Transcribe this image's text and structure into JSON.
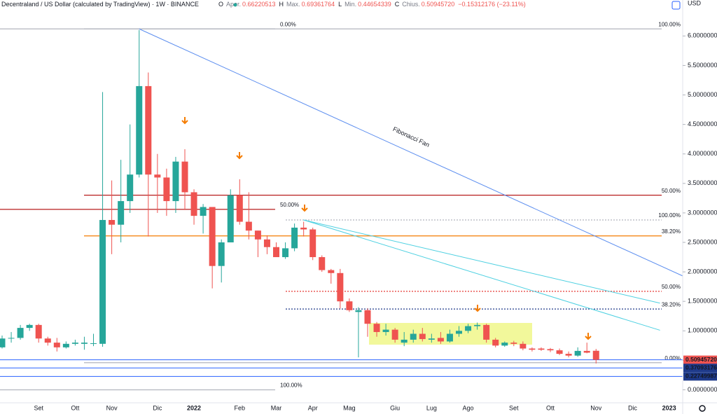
{
  "header": {
    "symbol": "Decentraland / US Dollar (calculated by TradingView) · 1W · BINANCE",
    "ohlc": [
      {
        "key": "O",
        "label": "Aper.",
        "value": "0.66220513"
      },
      {
        "key": "H",
        "label": "Max.",
        "value": "0.69361764"
      },
      {
        "key": "L",
        "label": "Min.",
        "value": "0.44654339"
      },
      {
        "key": "C",
        "label": "Chius.",
        "value": "0.50945720"
      }
    ],
    "change": "−0.15312176 (−23.11%)",
    "currency": "USD"
  },
  "chart_data": {
    "type": "candlestick",
    "up_color": "#26a69a",
    "down_color": "#ef5350",
    "categories": [
      null,
      null,
      null,
      null,
      "Set",
      null,
      null,
      null,
      "Ott",
      null,
      null,
      null,
      "Nov",
      null,
      null,
      null,
      null,
      "Dic",
      null,
      null,
      null,
      "2022",
      null,
      null,
      null,
      null,
      "Feb",
      null,
      null,
      null,
      "Mar",
      null,
      null,
      null,
      "Apr",
      null,
      null,
      null,
      "Mag",
      null,
      null,
      null,
      null,
      "Giu",
      null,
      null,
      null,
      "Lug",
      null,
      null,
      null,
      "Ago",
      null,
      null,
      null,
      null,
      "Set",
      null,
      null,
      null,
      "Ott",
      null,
      null,
      null,
      null,
      "Nov",
      null,
      null,
      null,
      "Dic",
      null,
      null,
      null,
      "2023"
    ],
    "open": [
      0.72,
      0.87,
      0.88,
      1.05,
      1.1,
      0.87,
      0.8,
      0.72,
      0.78,
      0.78,
      0.78,
      0.78,
      2.88,
      2.8,
      3.2,
      3.65,
      5.15,
      3.65,
      3.6,
      3.2,
      3.87,
      3.35,
      2.95,
      3.1,
      2.1,
      2.5,
      3.3,
      2.85,
      2.7,
      2.55,
      2.42,
      2.25,
      2.4,
      2.75,
      2.72,
      2.25,
      2.03,
      1.98,
      1.5,
      1.32,
      1.35,
      1.12,
      0.98,
      1.02,
      0.8,
      0.85,
      0.95,
      0.85,
      0.88,
      0.82,
      0.95,
      1.0,
      1.08,
      1.1,
      0.85,
      0.75,
      0.8,
      0.78,
      0.7,
      0.7,
      0.69,
      0.67,
      0.61,
      0.58,
      0.66,
      0.66220513,
      null,
      null,
      null,
      null,
      null,
      null,
      null,
      null
    ],
    "high": [
      0.92,
      0.98,
      1.1,
      1.12,
      1.12,
      0.9,
      0.88,
      0.82,
      0.85,
      0.9,
      0.95,
      5.05,
      3.55,
      3.9,
      4.5,
      6.1,
      5.38,
      4.0,
      3.75,
      3.95,
      4.08,
      3.4,
      3.15,
      3.1,
      2.55,
      3.4,
      3.57,
      3.35,
      2.7,
      2.62,
      2.5,
      2.5,
      2.82,
      2.85,
      2.75,
      2.28,
      2.05,
      2.05,
      1.55,
      1.4,
      1.38,
      1.15,
      1.12,
      1.05,
      0.98,
      1.02,
      1.05,
      0.95,
      0.98,
      1.02,
      1.08,
      1.12,
      1.14,
      1.12,
      0.88,
      0.82,
      0.83,
      0.82,
      0.72,
      0.72,
      0.71,
      0.7,
      0.65,
      0.72,
      0.8,
      0.69361764,
      null,
      null,
      null,
      null,
      null,
      null,
      null,
      null
    ],
    "low": [
      0.7,
      0.8,
      0.85,
      1.0,
      0.8,
      0.75,
      0.65,
      0.7,
      0.75,
      0.68,
      0.74,
      0.73,
      2.3,
      2.5,
      3.0,
      3.6,
      2.6,
      3.0,
      2.95,
      3.0,
      3.05,
      2.8,
      2.65,
      1.72,
      1.82,
      2.5,
      2.8,
      2.55,
      2.25,
      2.3,
      2.25,
      2.22,
      2.35,
      2.6,
      2.2,
      2.0,
      1.8,
      1.38,
      1.32,
      0.55,
      0.9,
      0.9,
      0.92,
      0.8,
      0.74,
      0.8,
      0.82,
      0.8,
      0.78,
      0.8,
      0.9,
      0.96,
      1.02,
      0.8,
      0.72,
      0.73,
      0.74,
      0.67,
      0.65,
      0.66,
      0.64,
      0.59,
      0.55,
      0.56,
      0.62,
      0.44654339,
      null,
      null,
      null,
      null,
      null,
      null,
      null,
      null
    ],
    "close": [
      0.87,
      0.88,
      1.05,
      1.1,
      0.87,
      0.8,
      0.72,
      0.78,
      0.8,
      0.8,
      0.79,
      2.88,
      2.8,
      3.2,
      3.65,
      5.15,
      3.65,
      3.6,
      3.2,
      3.87,
      3.35,
      2.95,
      3.1,
      2.1,
      2.5,
      3.3,
      2.85,
      2.7,
      2.55,
      2.42,
      2.25,
      2.4,
      2.75,
      2.72,
      2.25,
      2.03,
      1.98,
      1.5,
      1.35,
      1.35,
      1.12,
      0.98,
      1.02,
      0.85,
      0.85,
      0.95,
      0.86,
      0.87,
      0.82,
      0.95,
      1.0,
      1.08,
      1.1,
      0.85,
      0.75,
      0.8,
      0.78,
      0.7,
      0.68,
      0.68,
      0.67,
      0.61,
      0.58,
      0.66,
      0.63,
      0.5094572,
      null,
      null,
      null,
      null,
      null,
      null,
      null,
      null
    ],
    "ylim": [
      -0.22,
      6.61
    ],
    "yticks": [
      {
        "value": 0,
        "label": "0.00000000"
      },
      {
        "value": 0.5,
        "label": "0.50000000"
      },
      {
        "value": 1,
        "label": "1.00000000"
      },
      {
        "value": 1.5,
        "label": "1.50000000"
      },
      {
        "value": 2,
        "label": "2.00000000"
      },
      {
        "value": 2.5,
        "label": "2.50000000"
      },
      {
        "value": 3,
        "label": "3.00000000"
      },
      {
        "value": 3.5,
        "label": "3.50000000"
      },
      {
        "value": 4,
        "label": "4.00000000"
      },
      {
        "value": 4.5,
        "label": "4.50000000"
      },
      {
        "value": 5,
        "label": "5.00000000"
      },
      {
        "value": 5.5,
        "label": "5.50000000"
      },
      {
        "value": 6,
        "label": "6.00000000"
      }
    ],
    "grid": false,
    "fib_retracements": [
      {
        "levels": [
          {
            "value": 6.12,
            "label": "0.00%",
            "color": "#b2b5be"
          },
          {
            "value": 3.06,
            "label": "50.00%",
            "color": "#b71c1c"
          },
          {
            "value": 0,
            "label": "100.00%",
            "color": "#b2b5be"
          }
        ]
      },
      {
        "levels": [
          {
            "value": 6.12,
            "label": "100.00%",
            "color": "#b2b5be"
          },
          {
            "value": 3.3,
            "label": "50.00%",
            "color": "#b71c1c"
          },
          {
            "value": 2.61,
            "label": "38.20%",
            "color": "#f57c00"
          },
          {
            "value": 0.46,
            "label": "0.00%",
            "color": "#b2b5be"
          }
        ]
      },
      {
        "dotted": true,
        "levels": [
          {
            "value": 2.88,
            "label": "100.00%",
            "color": "#b2b5be"
          },
          {
            "value": 1.67,
            "label": "50.00%",
            "color": "#e53935"
          },
          {
            "value": 1.37,
            "label": "38.20%",
            "color": "#1e3a8a"
          }
        ]
      }
    ],
    "trend_lines": [
      {
        "from": [
          15,
          6.12
        ],
        "to": [
          74.5,
          1.93
        ],
        "color": "#5b8def",
        "label": "Fibonacci Fan"
      },
      {
        "from": [
          33,
          2.88
        ],
        "to": [
          72,
          1.47
        ],
        "color": "#4dd0e1"
      },
      {
        "from": [
          33,
          2.88
        ],
        "to": [
          72,
          1.01
        ],
        "color": "#4dd0e1"
      }
    ],
    "price_lines": [
      {
        "value": 0.5094572,
        "label": "0.50945720",
        "color": "#ef5350",
        "line": "#2962ff"
      },
      {
        "value": 0.37093176,
        "label": "0.37093176",
        "color": "#1e3a8a",
        "line": "#2962ff"
      },
      {
        "value": 0.22749987,
        "label": "0.22749987",
        "color": "#1e3a8a",
        "line": "#2962ff"
      }
    ]
  }
}
